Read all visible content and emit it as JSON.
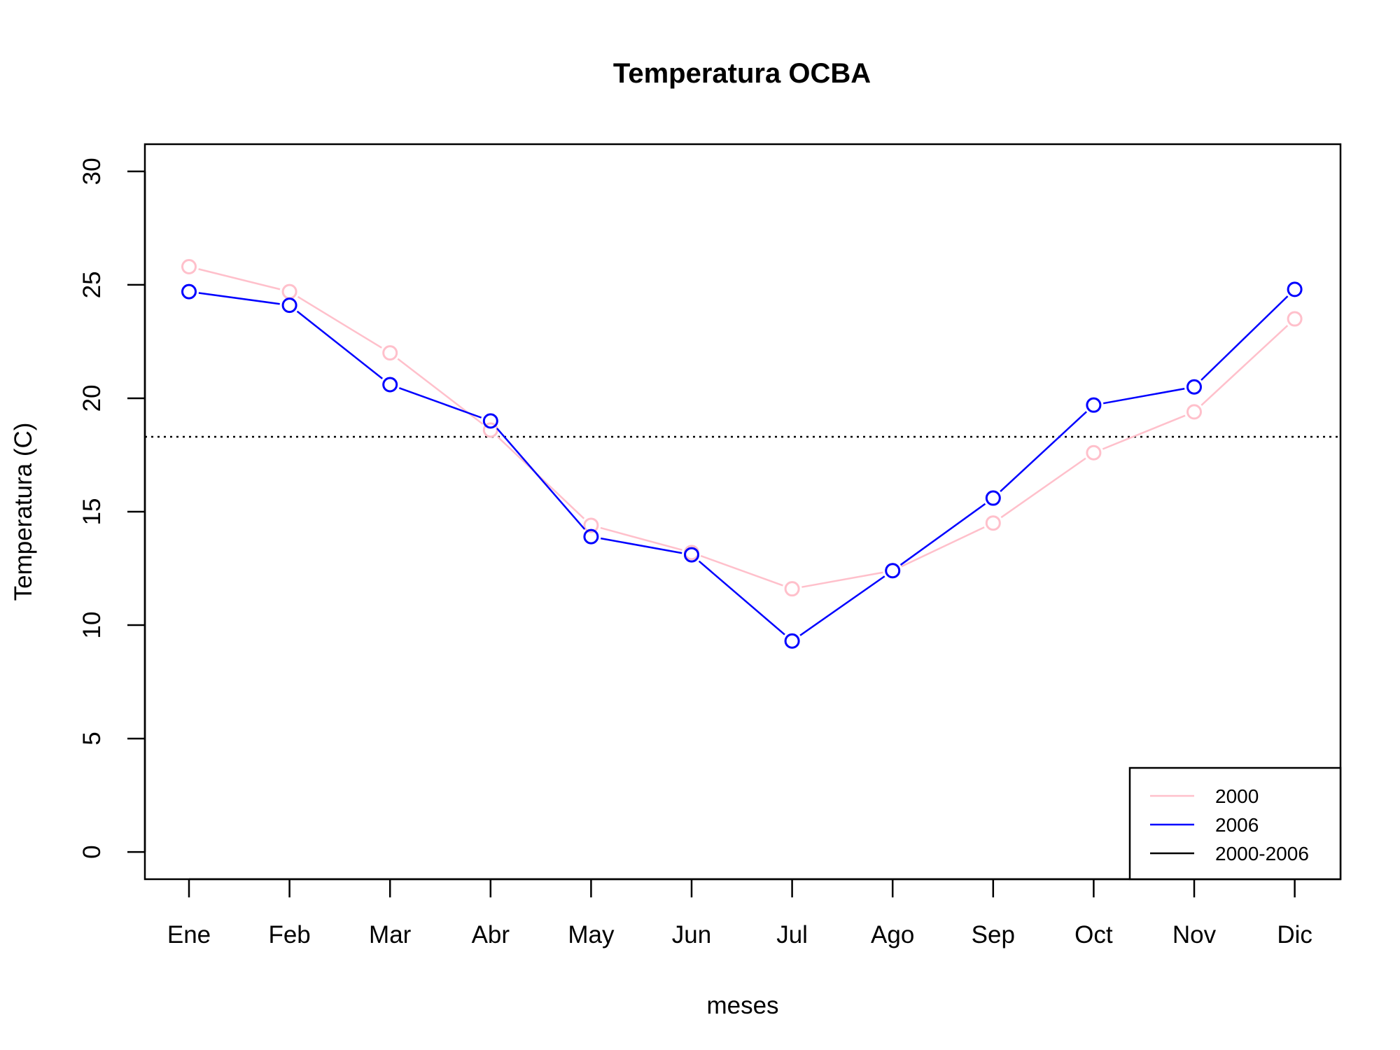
{
  "chart_data": {
    "type": "line",
    "title": "Temperatura OCBA",
    "xlabel": "meses",
    "ylabel": "Temperatura (C)",
    "categories": [
      "Ene",
      "Feb",
      "Mar",
      "Abr",
      "May",
      "Jun",
      "Jul",
      "Ago",
      "Sep",
      "Oct",
      "Nov",
      "Dic"
    ],
    "ylim": [
      -1.2,
      31.2
    ],
    "yticks": [
      0,
      5,
      10,
      15,
      20,
      25,
      30
    ],
    "series": [
      {
        "name": "2000",
        "color": "#ffc0cb",
        "values": [
          25.8,
          24.7,
          22.0,
          18.6,
          14.4,
          13.2,
          11.6,
          12.4,
          14.5,
          17.6,
          19.4,
          23.5
        ]
      },
      {
        "name": "2006",
        "color": "#0000ff",
        "values": [
          24.7,
          24.1,
          20.6,
          19.0,
          13.9,
          13.1,
          9.3,
          12.4,
          15.6,
          19.7,
          20.5,
          24.8
        ]
      }
    ],
    "reference_line": {
      "name": "2000-2006",
      "value": 18.3,
      "color": "#000000",
      "style": "dotted"
    },
    "legend": {
      "position": "bottom-right",
      "entries": [
        "2000",
        "2006",
        "2000-2006"
      ]
    },
    "grid": false
  }
}
